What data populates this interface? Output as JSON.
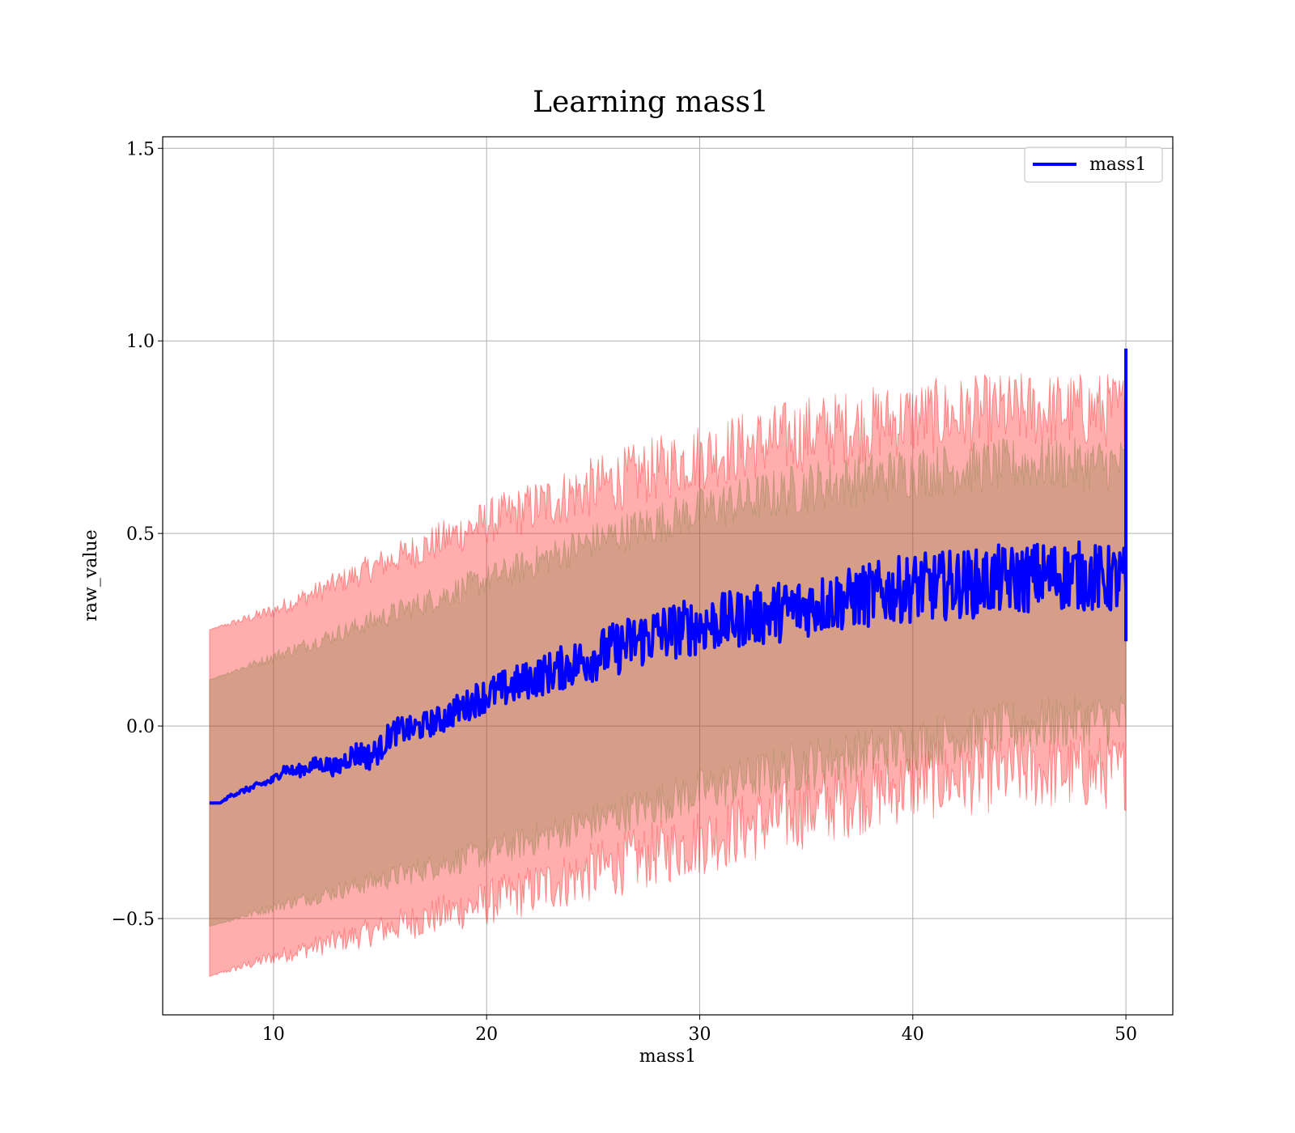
{
  "chart_data": {
    "type": "line",
    "title": "Learning mass1",
    "xlabel": "mass1",
    "ylabel": "raw_value",
    "xlim": [
      4.8,
      52.2
    ],
    "ylim": [
      -0.75,
      1.53
    ],
    "x_ticks": [
      10,
      20,
      30,
      40,
      50
    ],
    "x_tick_labels": [
      "10",
      "20",
      "30",
      "40",
      "50"
    ],
    "y_ticks": [
      -0.5,
      0.0,
      0.5,
      1.0,
      1.5
    ],
    "y_tick_labels": [
      "−0.5",
      "0.0",
      "0.5",
      "1.0",
      "1.5"
    ],
    "grid": true,
    "legend": {
      "position": "upper-right",
      "entries": [
        "mass1"
      ]
    },
    "series": [
      {
        "name": "mass1",
        "color": "#0000ff",
        "x": [
          7,
          7.5,
          8,
          8.5,
          9,
          9.5,
          10,
          10.5,
          11,
          11.5,
          12,
          12.5,
          13,
          13.5,
          14,
          14.5,
          15,
          15.5,
          16,
          16.5,
          17,
          17.5,
          18,
          18.5,
          19,
          19.5,
          20,
          21,
          22,
          23,
          24,
          25,
          26,
          27,
          28,
          29,
          30,
          31,
          32,
          33,
          34,
          35,
          36,
          37,
          38,
          39,
          40,
          41,
          42,
          43,
          44,
          45,
          46,
          47,
          48,
          49,
          50
        ],
        "y": [
          -0.2,
          -0.2,
          -0.18,
          -0.17,
          -0.16,
          -0.15,
          -0.14,
          -0.11,
          -0.12,
          -0.11,
          -0.1,
          -0.1,
          -0.11,
          -0.08,
          -0.07,
          -0.08,
          -0.06,
          -0.02,
          -0.01,
          -0.01,
          0.0,
          0.01,
          0.02,
          0.04,
          0.05,
          0.07,
          0.08,
          0.1,
          0.12,
          0.14,
          0.16,
          0.18,
          0.2,
          0.22,
          0.24,
          0.25,
          0.26,
          0.27,
          0.28,
          0.29,
          0.3,
          0.31,
          0.32,
          0.33,
          0.34,
          0.35,
          0.36,
          0.36,
          0.37,
          0.37,
          0.38,
          0.38,
          0.39,
          0.39,
          0.39,
          0.38,
          0.38
        ],
        "noise": [
          0.0,
          0.0,
          0.005,
          0.006,
          0.008,
          0.01,
          0.012,
          0.014,
          0.016,
          0.018,
          0.02,
          0.022,
          0.025,
          0.03,
          0.035,
          0.035,
          0.035,
          0.035,
          0.035,
          0.035,
          0.035,
          0.035,
          0.038,
          0.04,
          0.04,
          0.045,
          0.045,
          0.05,
          0.05,
          0.055,
          0.06,
          0.065,
          0.07,
          0.075,
          0.075,
          0.075,
          0.075,
          0.075,
          0.075,
          0.08,
          0.08,
          0.08,
          0.08,
          0.08,
          0.085,
          0.085,
          0.09,
          0.09,
          0.09,
          0.09,
          0.09,
          0.09,
          0.09,
          0.09,
          0.09,
          0.09,
          0.09
        ],
        "final_spike": {
          "x": 50,
          "y_top": 0.98,
          "y_bottom": 0.22
        }
      }
    ],
    "bands": [
      {
        "name": "outer",
        "color": "#ff0000",
        "opacity": 0.32,
        "x": [
          7,
          10,
          15,
          20,
          25,
          30,
          35,
          40,
          45,
          50
        ],
        "upper": [
          0.25,
          0.3,
          0.42,
          0.53,
          0.62,
          0.7,
          0.76,
          0.8,
          0.82,
          0.82
        ],
        "lower": [
          -0.65,
          -0.6,
          -0.53,
          -0.46,
          -0.38,
          -0.3,
          -0.22,
          -0.15,
          -0.12,
          -0.12
        ],
        "noise": [
          0.0,
          0.02,
          0.04,
          0.06,
          0.08,
          0.09,
          0.1,
          0.1,
          0.1,
          0.1
        ]
      },
      {
        "name": "inner",
        "color": "#7f7f3f",
        "opacity": 0.32,
        "x": [
          7,
          10,
          15,
          20,
          25,
          30,
          35,
          40,
          45,
          50
        ],
        "upper": [
          0.12,
          0.18,
          0.28,
          0.38,
          0.48,
          0.56,
          0.62,
          0.66,
          0.68,
          0.68
        ],
        "lower": [
          -0.52,
          -0.47,
          -0.4,
          -0.33,
          -0.25,
          -0.17,
          -0.1,
          -0.05,
          0.0,
          0.02
        ],
        "noise": [
          0.0,
          0.015,
          0.03,
          0.04,
          0.05,
          0.06,
          0.07,
          0.07,
          0.07,
          0.07
        ]
      }
    ]
  }
}
